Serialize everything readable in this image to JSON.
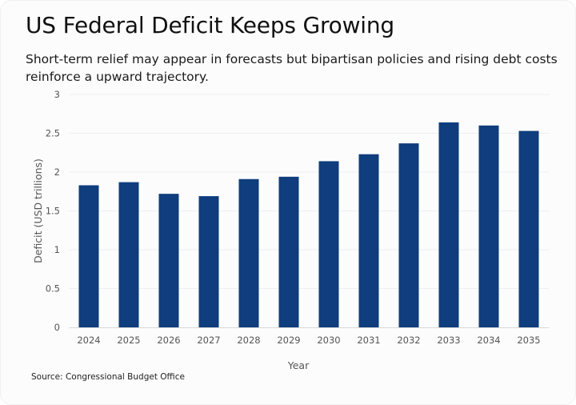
{
  "title": "US Federal Deficit Keeps Growing",
  "subtitle": "Short-term relief may appear in forecasts but bipartisan policies and rising debt costs reinforce a upward trajectory.",
  "source": "Source: Congressional Budget Office",
  "colors": {
    "bar": "#0f3d7d",
    "grid": "#eeeeee",
    "axis": "#d9d9d9"
  },
  "chart_data": {
    "type": "bar",
    "title": "US Federal Deficit Keeps Growing",
    "xlabel": "Year",
    "ylabel": "Deficit (USD trillions)",
    "categories": [
      "2024",
      "2025",
      "2026",
      "2027",
      "2028",
      "2029",
      "2030",
      "2031",
      "2032",
      "2033",
      "2034",
      "2035"
    ],
    "values": [
      1.83,
      1.87,
      1.72,
      1.69,
      1.91,
      1.94,
      2.14,
      2.23,
      2.37,
      2.64,
      2.6,
      2.53
    ],
    "ylim": [
      0,
      3
    ],
    "yticks": [
      0,
      0.5,
      1,
      1.5,
      2,
      2.5,
      3
    ],
    "ytick_labels": [
      "0",
      "0.5",
      "1",
      "1.5",
      "2",
      "2.5",
      "3"
    ],
    "grid": true,
    "legend": "none"
  }
}
